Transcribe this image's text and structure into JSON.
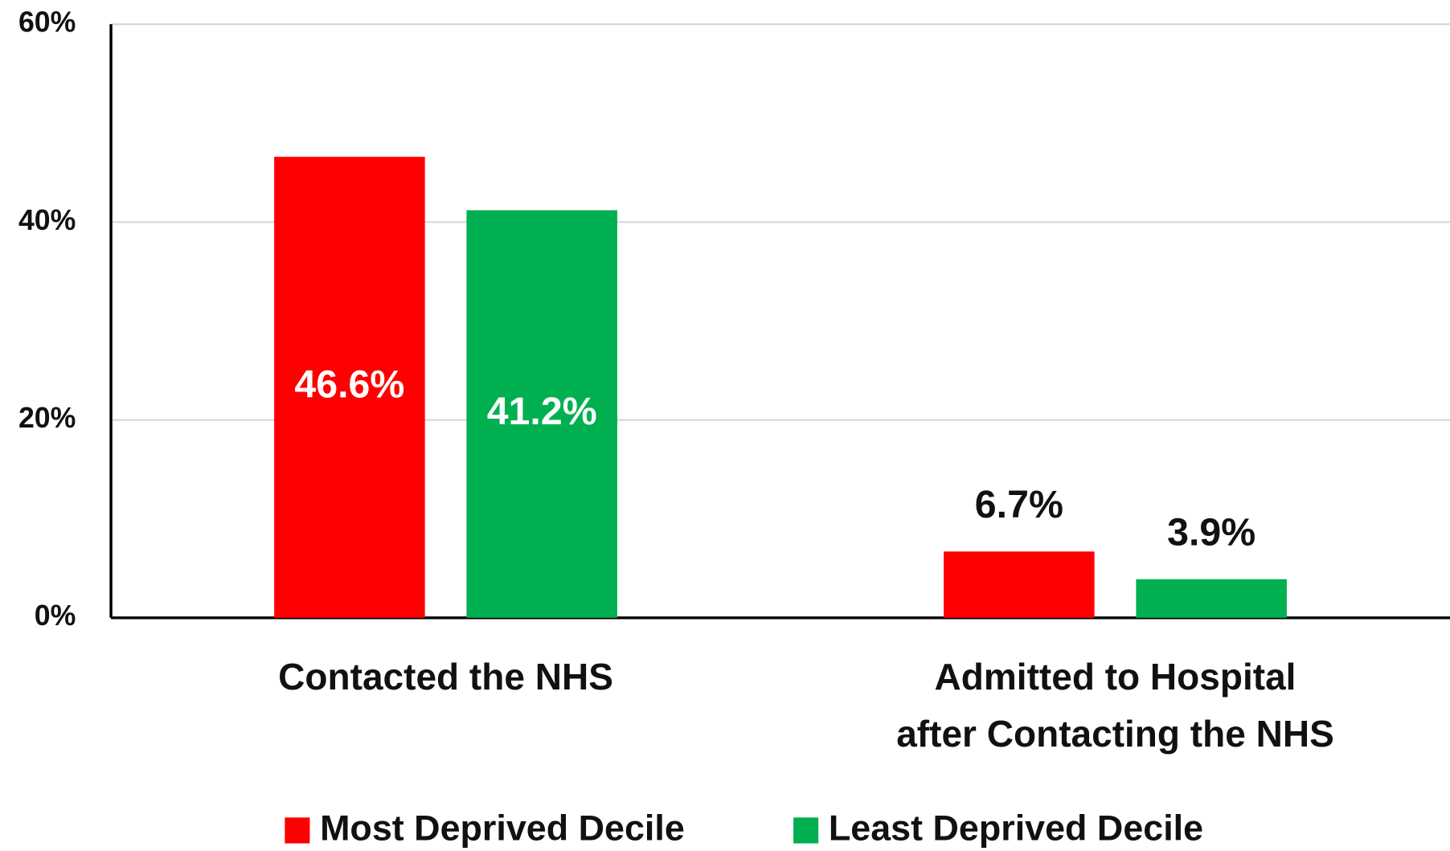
{
  "chart_data": {
    "type": "bar",
    "categories": [
      "Contacted the NHS",
      "Admitted to Hospital after Contacting the NHS"
    ],
    "series": [
      {
        "name": "Most Deprived Decile",
        "color": "#ff0000",
        "values": [
          46.6,
          6.7
        ],
        "value_labels": [
          "46.6%",
          "6.7%"
        ]
      },
      {
        "name": "Least Deprived Decile",
        "color": "#00b050",
        "values": [
          41.2,
          3.9
        ],
        "value_labels": [
          "41.2%",
          "3.9%"
        ]
      }
    ],
    "ylim": [
      0,
      60
    ],
    "yticks": [
      {
        "value": 0,
        "label": "0%"
      },
      {
        "value": 20,
        "label": "20%"
      },
      {
        "value": 40,
        "label": "40%"
      },
      {
        "value": 60,
        "label": "60%"
      }
    ],
    "grid": true,
    "legend": "bottom"
  }
}
